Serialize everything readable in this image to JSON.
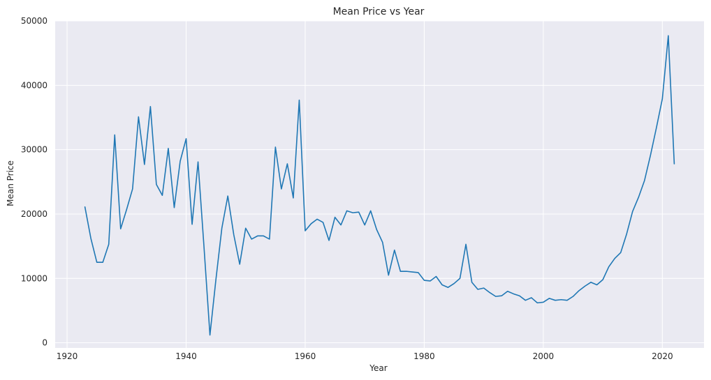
{
  "chart_data": {
    "type": "line",
    "title": "Mean Price vs Year",
    "xlabel": "Year",
    "ylabel": "Mean Price",
    "xlim": [
      1918,
      2027
    ],
    "ylim": [
      -800,
      50000
    ],
    "xticks": [
      1920,
      1940,
      1960,
      1980,
      2000,
      2020
    ],
    "yticks": [
      0,
      10000,
      20000,
      30000,
      40000,
      50000
    ],
    "xtick_labels": [
      "1920",
      "1940",
      "1960",
      "1980",
      "2000",
      "2020"
    ],
    "ytick_labels": [
      "0",
      "10000",
      "20000",
      "30000",
      "40000",
      "50000"
    ],
    "grid": true,
    "background": "#eaeaf2",
    "series": [
      {
        "color": "#1f77b4",
        "x": [
          1923,
          1924,
          1925,
          1926,
          1927,
          1928,
          1929,
          1930,
          1931,
          1932,
          1933,
          1934,
          1935,
          1936,
          1937,
          1938,
          1939,
          1940,
          1941,
          1942,
          1943,
          1944,
          1945,
          1946,
          1947,
          1948,
          1949,
          1950,
          1951,
          1952,
          1953,
          1954,
          1955,
          1956,
          1957,
          1958,
          1959,
          1960,
          1961,
          1962,
          1963,
          1964,
          1965,
          1966,
          1967,
          1968,
          1969,
          1970,
          1971,
          1972,
          1973,
          1974,
          1975,
          1976,
          1977,
          1978,
          1979,
          1980,
          1981,
          1982,
          1983,
          1984,
          1985,
          1986,
          1987,
          1988,
          1989,
          1990,
          1991,
          1992,
          1993,
          1994,
          1995,
          1996,
          1997,
          1998,
          1999,
          2000,
          2001,
          2002,
          2003,
          2004,
          2005,
          2006,
          2007,
          2008,
          2009,
          2010,
          2011,
          2012,
          2013,
          2014,
          2015,
          2016,
          2017,
          2018,
          2019,
          2020,
          2021,
          2022
        ],
        "y": [
          21100,
          16200,
          12500,
          12500,
          15300,
          32300,
          17700,
          20700,
          23900,
          35100,
          27700,
          36700,
          24600,
          22900,
          30200,
          21000,
          28200,
          31700,
          18400,
          28100,
          14900,
          1200,
          9800,
          17800,
          22800,
          16800,
          12200,
          17800,
          16100,
          16600,
          16600,
          16100,
          30400,
          23900,
          27800,
          22500,
          37700,
          17400,
          18500,
          19200,
          18700,
          15900,
          19500,
          18300,
          20500,
          20200,
          20300,
          18300,
          20500,
          17600,
          15600,
          10500,
          14400,
          11100,
          11100,
          11000,
          10900,
          9700,
          9600,
          10300,
          9000,
          8600,
          9200,
          10000,
          15300,
          9400,
          8300,
          8500,
          7800,
          7200,
          7300,
          8000,
          7600,
          7300,
          6600,
          7000,
          6200,
          6300,
          6900,
          6600,
          6700,
          6600,
          7200,
          8100,
          8800,
          9400,
          9000,
          9800,
          11800,
          13100,
          14000,
          16900,
          20400,
          22600,
          25200,
          29100,
          33400,
          37900,
          47700,
          27800
        ]
      }
    ]
  }
}
